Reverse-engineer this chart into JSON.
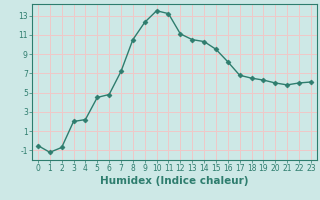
{
  "x": [
    0,
    1,
    2,
    3,
    4,
    5,
    6,
    7,
    8,
    9,
    10,
    11,
    12,
    13,
    14,
    15,
    16,
    17,
    18,
    19,
    20,
    21,
    22,
    23
  ],
  "y": [
    -0.5,
    -1.2,
    -0.7,
    2.0,
    2.2,
    4.5,
    4.8,
    7.2,
    10.5,
    12.3,
    13.5,
    13.2,
    11.1,
    10.5,
    10.3,
    9.5,
    8.2,
    6.8,
    6.5,
    6.3,
    6.0,
    5.8,
    6.0,
    6.1
  ],
  "xlabel": "Humidex (Indice chaleur)",
  "xlim": [
    -0.5,
    23.5
  ],
  "ylim": [
    -2.0,
    14.2
  ],
  "yticks": [
    -1,
    1,
    3,
    5,
    7,
    9,
    11,
    13
  ],
  "xticks": [
    0,
    1,
    2,
    3,
    4,
    5,
    6,
    7,
    8,
    9,
    10,
    11,
    12,
    13,
    14,
    15,
    16,
    17,
    18,
    19,
    20,
    21,
    22,
    23
  ],
  "line_color": "#2e7d6e",
  "marker_color": "#2e7d6e",
  "bg_color": "#cde8e6",
  "grid_color": "#f0c8c8",
  "spine_color": "#2e7d6e",
  "tick_fontsize": 5.5,
  "label_fontsize": 7.5
}
